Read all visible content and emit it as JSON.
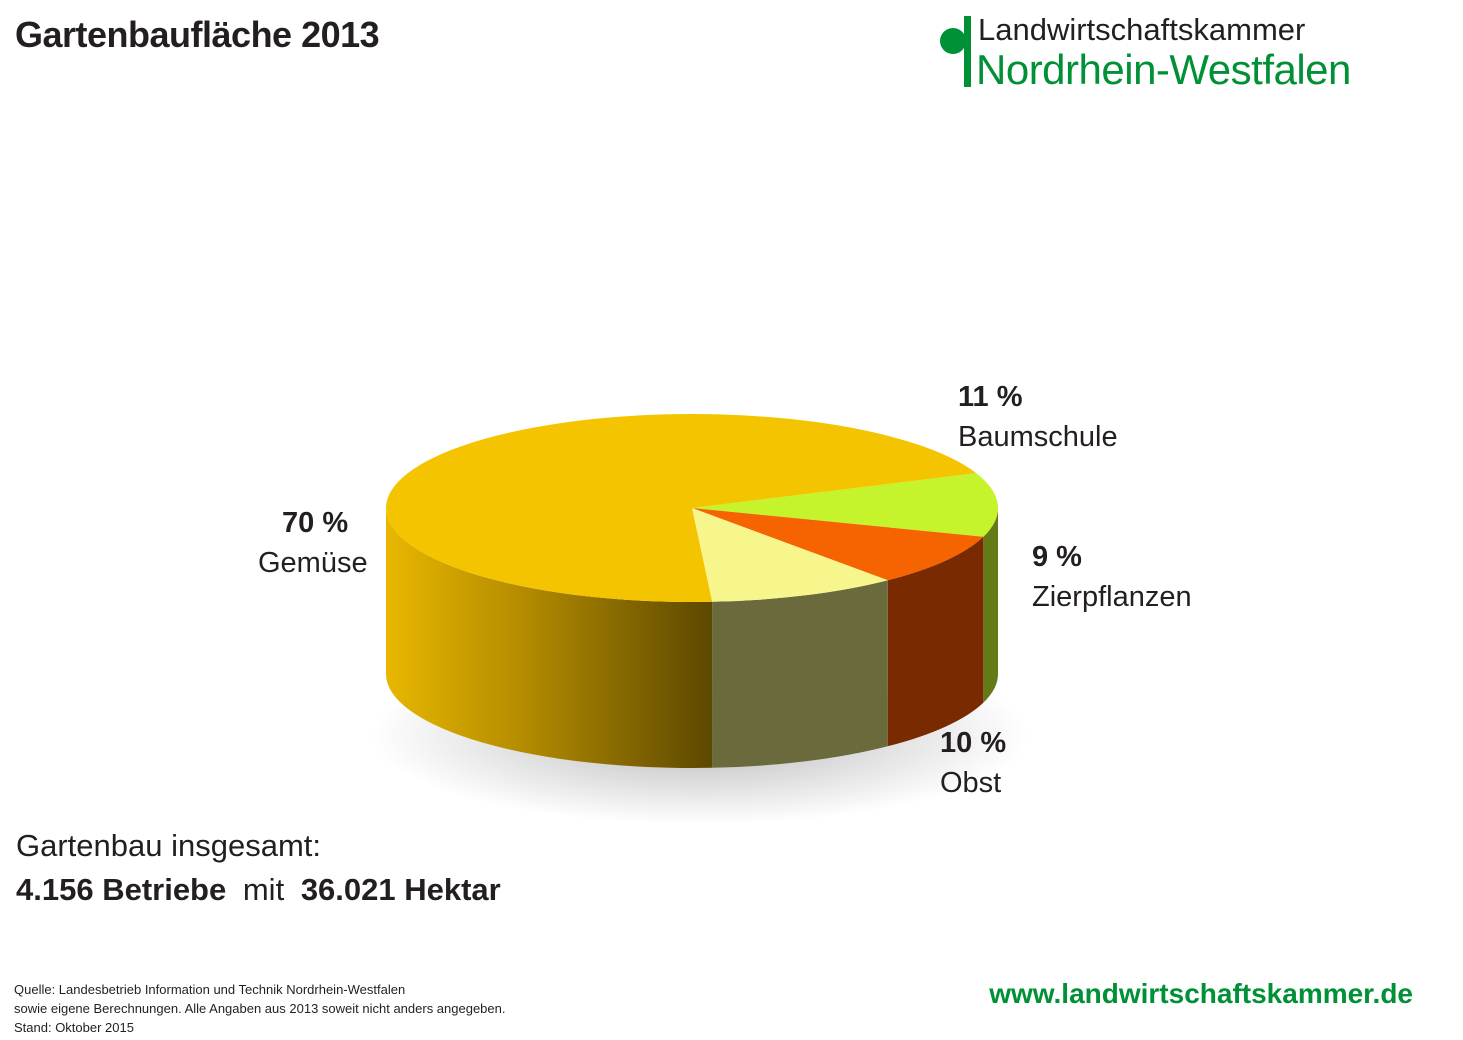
{
  "header": {
    "title": "Gartenbaufläche 2013"
  },
  "logo": {
    "line1": "Landwirtschaftskammer",
    "line2": "Nordrhein-Westfalen",
    "color": "#009036"
  },
  "chart_data": {
    "type": "pie",
    "title": "Gartenbaufläche 2013",
    "unit": "%",
    "slices": [
      {
        "name": "Gemüse",
        "value": 70,
        "label": "70 %",
        "color": "#f5c400"
      },
      {
        "name": "Baumschule",
        "value": 11,
        "label": "11 %",
        "color": "#c5f42c"
      },
      {
        "name": "Zierpflanzen",
        "value": 9,
        "label": "9 %",
        "color": "#f56400"
      },
      {
        "name": "Obst",
        "value": 10,
        "label": "10 %",
        "color": "#f6f68c"
      }
    ]
  },
  "summary": {
    "line1": "Gartenbau insgesamt:",
    "betriebe": "4.156 Betriebe",
    "mit": "mit",
    "hektar": "36.021 Hektar"
  },
  "footnote": {
    "line1": "Quelle: Landesbetrieb Information und Technik Nordrhein-Westfalen",
    "line2": "sowie eigene Berechnungen. Alle Angaben aus 2013 soweit nicht anders angegeben.",
    "line3": "Stand: Oktober 2015"
  },
  "website": "www.landwirtschaftskammer.de"
}
